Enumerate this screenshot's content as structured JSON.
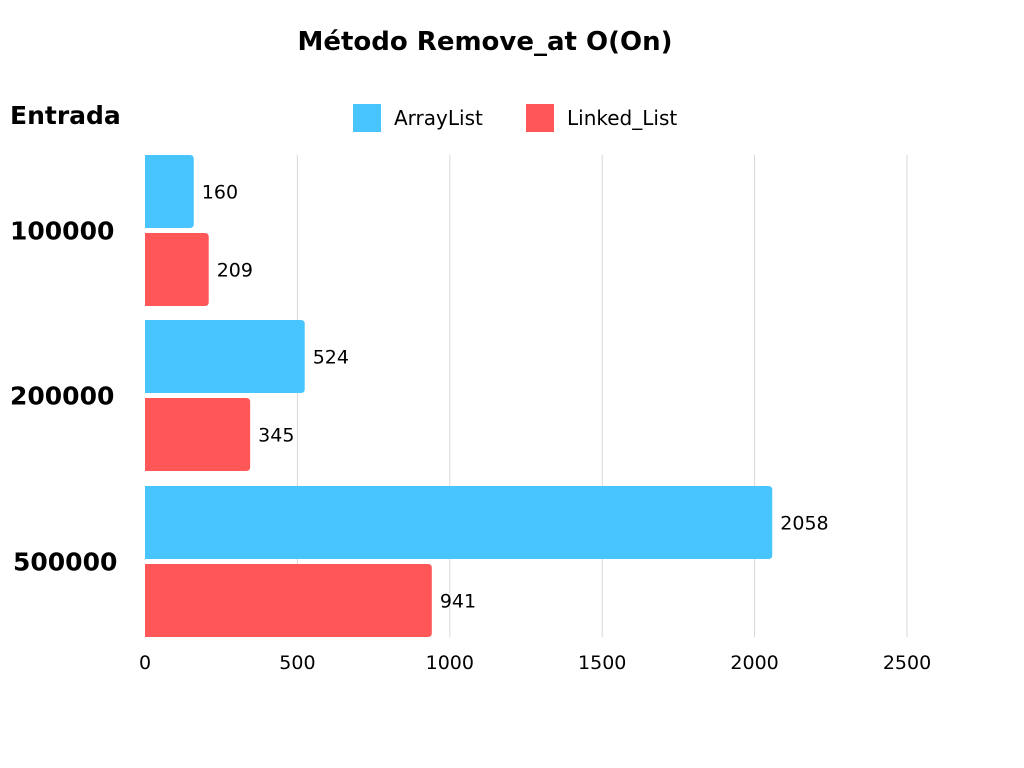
{
  "chart_data": {
    "type": "bar",
    "orientation": "horizontal",
    "title": "Método Remove_at O(On)",
    "ylabel": "Entrada",
    "xlabel": "",
    "categories": [
      "100000",
      "200000",
      "500000"
    ],
    "series": [
      {
        "name": "ArrayList",
        "color": "#48C4FF",
        "values": [
          160,
          524,
          2058
        ]
      },
      {
        "name": "Linked_List",
        "color": "#FF5757",
        "values": [
          209,
          345,
          941
        ]
      }
    ],
    "xlim": [
      0,
      2500
    ],
    "xticks": [
      0,
      500,
      1000,
      1500,
      2000,
      2500
    ],
    "grid": "vertical",
    "legend_position": "top"
  }
}
